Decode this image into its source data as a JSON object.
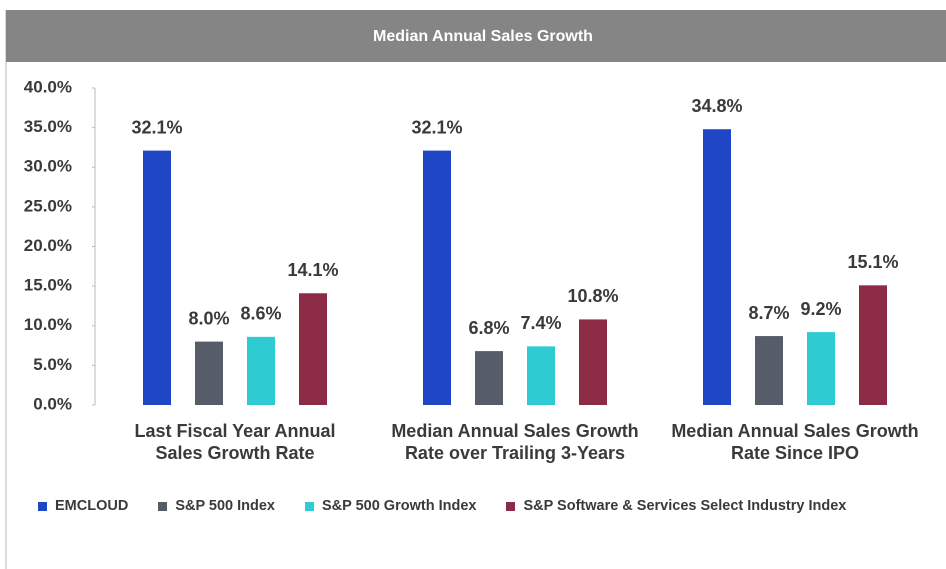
{
  "chart_data": {
    "type": "bar",
    "title": "Median Annual Sales Growth",
    "categories": [
      "Last Fiscal Year Annual Sales Growth Rate",
      "Median Annual Sales Growth Rate over Trailing 3-Years",
      "Median Annual Sales Growth Rate Since IPO"
    ],
    "series": [
      {
        "name": "EMCLOUD",
        "color": "#1f46c4",
        "values": [
          32.1,
          32.1,
          34.8
        ],
        "value_labels": [
          "32.1%",
          "32.1%",
          "34.8%"
        ]
      },
      {
        "name": "S&P 500 Index",
        "color": "#565d68",
        "values": [
          8.0,
          6.8,
          8.7
        ],
        "value_labels": [
          "8.0%",
          "6.8%",
          "8.7%"
        ]
      },
      {
        "name": "S&P 500 Growth Index",
        "color": "#2fcbd2",
        "values": [
          8.6,
          7.4,
          9.2
        ],
        "value_labels": [
          "8.6%",
          "7.4%",
          "9.2%"
        ]
      },
      {
        "name": "S&P Software & Services Select Industry Index",
        "color": "#8c2b46",
        "values": [
          14.1,
          10.8,
          15.1
        ],
        "value_labels": [
          "14.1%",
          "10.8%",
          "15.1%"
        ]
      }
    ],
    "ylim": [
      0,
      40
    ],
    "yticks": [
      {
        "value": 0,
        "label": "0.0%"
      },
      {
        "value": 5,
        "label": "5.0%"
      },
      {
        "value": 10,
        "label": "10.0%"
      },
      {
        "value": 15,
        "label": "15.0%"
      },
      {
        "value": 20,
        "label": "20.0%"
      },
      {
        "value": 25,
        "label": "25.0%"
      },
      {
        "value": 30,
        "label": "30.0%"
      },
      {
        "value": 35,
        "label": "35.0%"
      },
      {
        "value": 40,
        "label": "40.0%"
      }
    ],
    "grid": false
  }
}
